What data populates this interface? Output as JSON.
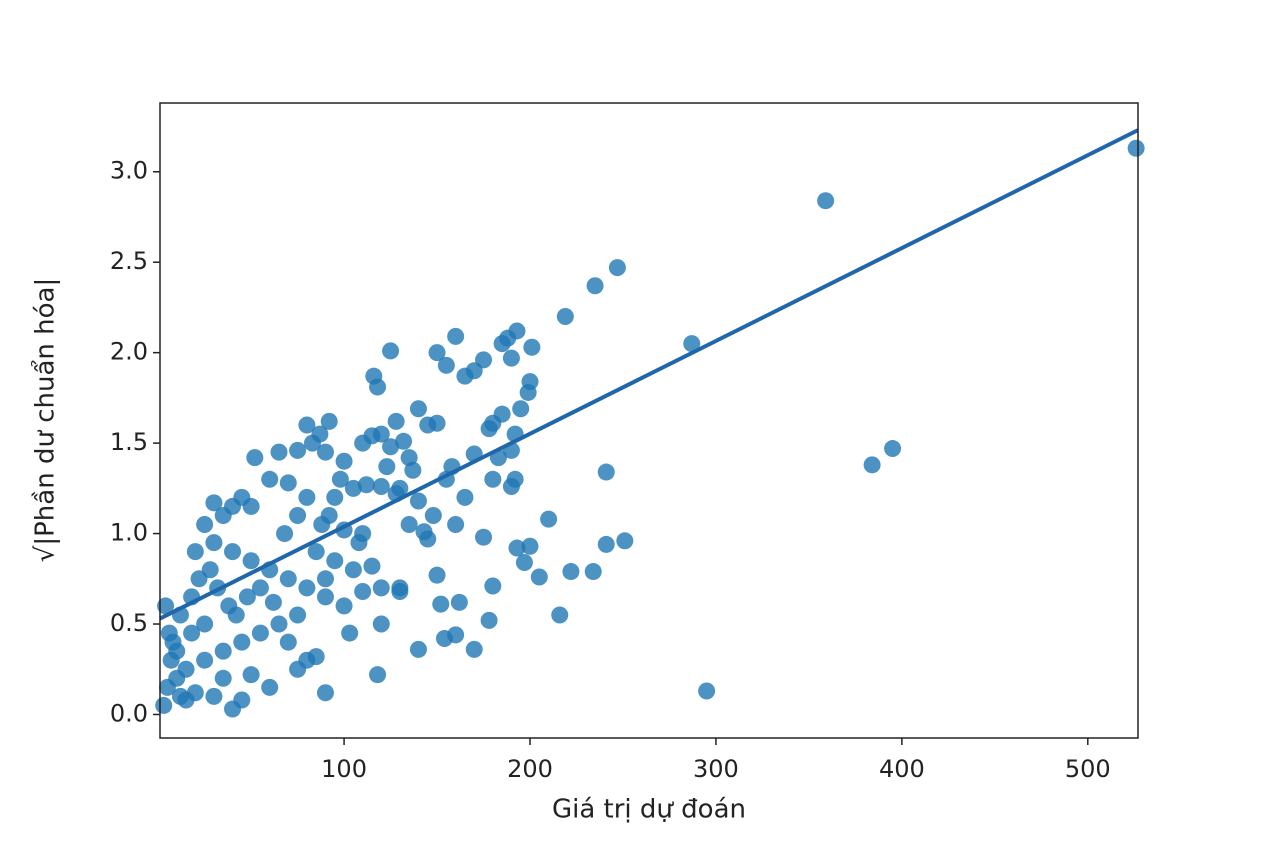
{
  "chart_data": {
    "type": "scatter",
    "xlabel": "Giá trị dự đoán",
    "ylabel": "√|Phần dư chuẩn hóa|",
    "color": "#1f77b4",
    "xlim": [
      1,
      527
    ],
    "ylim": [
      -0.13,
      3.38
    ],
    "xticks": [
      100,
      200,
      300,
      400,
      500
    ],
    "yticks": [
      {
        "value": 0,
        "label": "0.0"
      },
      0.5,
      {
        "value": 1,
        "label": "1.0"
      },
      1.5,
      {
        "value": 2,
        "label": "2.0"
      },
      2.5,
      {
        "value": 3,
        "label": "3.0"
      }
    ],
    "fit": {
      "x": [
        1,
        527
      ],
      "values": [
        0.53,
        3.23
      ],
      "color": "#1f66aa"
    },
    "x": [
      526,
      359,
      287,
      295,
      384,
      395,
      247,
      235,
      219,
      201,
      193,
      188,
      190,
      185,
      175,
      170,
      165,
      160,
      155,
      150,
      125,
      116,
      118,
      200,
      199,
      195,
      192,
      185,
      180,
      178,
      183,
      190,
      192,
      190,
      180,
      241,
      210,
      241,
      251,
      222,
      234,
      200,
      193,
      197,
      205,
      216,
      180,
      178,
      170,
      160,
      154,
      152,
      162,
      150,
      140,
      118,
      90,
      160,
      175,
      165,
      170,
      158,
      155,
      145,
      140,
      150,
      132,
      128,
      120,
      110,
      115,
      125,
      123,
      135,
      130,
      137,
      128,
      140,
      120,
      112,
      105,
      100,
      98,
      95,
      92,
      88,
      83,
      80,
      92,
      87,
      90,
      75,
      65,
      52,
      60,
      70,
      80,
      75,
      68,
      50,
      45,
      40,
      35,
      30,
      25,
      20,
      30,
      40,
      50,
      60,
      70,
      80,
      90,
      100,
      110,
      120,
      130,
      115,
      105,
      95,
      85,
      90,
      75,
      65,
      55,
      45,
      35,
      25,
      15,
      10,
      5,
      3,
      8,
      12,
      18,
      22,
      28,
      32,
      38,
      42,
      48,
      55,
      62,
      70,
      80,
      75,
      85,
      60,
      50,
      40,
      45,
      35,
      30,
      20,
      15,
      10,
      6,
      4,
      7,
      12,
      25,
      18,
      103,
      120,
      130,
      145,
      143,
      148,
      135,
      108,
      100,
      110
    ],
    "values": [
      3.13,
      2.84,
      2.05,
      0.13,
      1.38,
      1.47,
      2.47,
      2.37,
      2.2,
      2.03,
      2.12,
      2.08,
      1.97,
      2.05,
      1.96,
      1.9,
      1.87,
      2.09,
      1.93,
      2.0,
      2.01,
      1.87,
      1.81,
      1.84,
      1.78,
      1.69,
      1.55,
      1.66,
      1.61,
      1.58,
      1.42,
      1.46,
      1.3,
      1.26,
      1.3,
      1.34,
      1.08,
      0.94,
      0.96,
      0.79,
      0.79,
      0.93,
      0.92,
      0.84,
      0.76,
      0.55,
      0.71,
      0.52,
      0.36,
      0.44,
      0.42,
      0.61,
      0.62,
      0.77,
      0.36,
      0.22,
      0.12,
      1.05,
      0.98,
      1.2,
      1.44,
      1.37,
      1.3,
      1.6,
      1.69,
      1.61,
      1.51,
      1.62,
      1.55,
      1.5,
      1.54,
      1.48,
      1.37,
      1.42,
      1.25,
      1.35,
      1.22,
      1.18,
      1.26,
      1.27,
      1.25,
      1.4,
      1.3,
      1.2,
      1.1,
      1.05,
      1.5,
      1.6,
      1.62,
      1.55,
      1.45,
      1.46,
      1.45,
      1.42,
      1.3,
      1.28,
      1.2,
      1.1,
      1.0,
      1.15,
      1.2,
      1.15,
      1.1,
      1.17,
      1.05,
      0.9,
      0.95,
      0.9,
      0.85,
      0.8,
      0.75,
      0.7,
      0.65,
      0.6,
      0.68,
      0.7,
      0.7,
      0.82,
      0.8,
      0.85,
      0.9,
      0.75,
      0.55,
      0.5,
      0.45,
      0.4,
      0.35,
      0.3,
      0.25,
      0.2,
      0.15,
      0.05,
      0.4,
      0.55,
      0.65,
      0.75,
      0.8,
      0.7,
      0.6,
      0.55,
      0.65,
      0.7,
      0.62,
      0.4,
      0.3,
      0.25,
      0.32,
      0.15,
      0.22,
      0.03,
      0.08,
      0.2,
      0.1,
      0.12,
      0.08,
      0.35,
      0.45,
      0.6,
      0.3,
      0.1,
      0.5,
      0.45,
      0.45,
      0.5,
      0.68,
      0.97,
      1.01,
      1.1,
      1.05,
      0.95,
      1.02,
      1.0
    ]
  }
}
